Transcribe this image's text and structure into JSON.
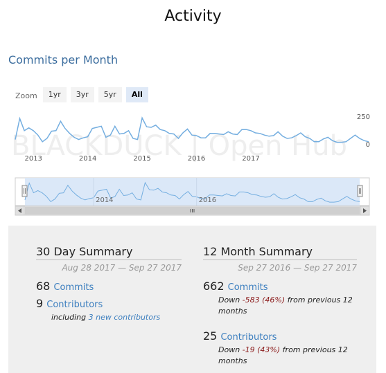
{
  "page": {
    "title": "Activity"
  },
  "chart_header": {
    "title": "Commits per Month"
  },
  "zoom": {
    "label": "Zoom",
    "buttons": [
      {
        "label": "1yr",
        "active": false
      },
      {
        "label": "3yr",
        "active": false
      },
      {
        "label": "5yr",
        "active": false
      },
      {
        "label": "All",
        "active": true
      }
    ]
  },
  "watermark": "BLACKDUCK | Open Hub",
  "navigator": {
    "labels": [
      "2014",
      "2016"
    ]
  },
  "colors": {
    "line": "#74aee0",
    "accent": "#3d7fbf",
    "negative": "#8b1a1a",
    "navigator_fill": "#dbe8f8"
  },
  "chart_data": {
    "type": "line",
    "x_start": "2012-09",
    "x_end": "2017-09",
    "x_tick_labels": [
      "2013",
      "2014",
      "2015",
      "2016",
      "2017"
    ],
    "y_tick_labels": [
      "250",
      "0"
    ],
    "ylim": [
      0,
      250
    ],
    "grid": false,
    "series": [
      {
        "values": [
          40,
          230,
          120,
          145,
          120,
          80,
          20,
          50,
          115,
          120,
          205,
          140,
          95,
          60,
          40,
          55,
          65,
          140,
          150,
          160,
          60,
          80,
          160,
          90,
          95,
          120,
          50,
          40,
          235,
          155,
          150,
          170,
          130,
          120,
          95,
          90,
          50,
          100,
          135,
          80,
          75,
          55,
          55,
          95,
          95,
          90,
          85,
          110,
          90,
          85,
          130,
          130,
          120,
          100,
          95,
          80,
          70,
          75,
          110,
          70,
          50,
          55,
          75,
          100,
          65,
          50,
          20,
          20,
          45,
          60,
          30,
          15,
          15,
          20,
          50,
          80,
          50,
          30,
          20
        ]
      }
    ]
  },
  "summary_30day": {
    "title": "30 Day Summary",
    "range": "Aug 28 2017 — Sep 27 2017",
    "commits_count": "68",
    "commits_label": "Commits",
    "contributors_count": "9",
    "contributors_label": "Contributors",
    "including_prefix": "including",
    "new_contributors": "3 new contributors"
  },
  "summary_12month": {
    "title": "12 Month Summary",
    "range": "Sep 27 2016 — Sep 27 2017",
    "commits_count": "662",
    "commits_label": "Commits",
    "commits_note_prefix": "Down",
    "commits_delta": "-583 (46%)",
    "commits_note_suffix": "from previous 12 months",
    "contributors_count": "25",
    "contributors_label": "Contributors",
    "contributors_note_prefix": "Down",
    "contributors_delta": "-19 (43%)",
    "contributors_note_suffix": "from previous 12 months"
  }
}
